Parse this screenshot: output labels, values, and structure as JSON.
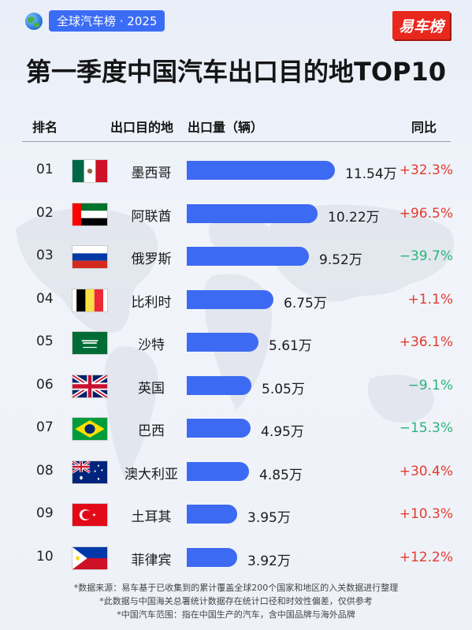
{
  "tag": "全球汽车榜 · 2025",
  "logo": "易车榜",
  "title": "第一季度中国汽车出口目的地TOP10",
  "headers": {
    "rank": "排名",
    "country": "出口目的地",
    "volume": "出口量（辆）",
    "yoy": "同比"
  },
  "colors": {
    "bar": "#3d6af2",
    "positive": "#e33b2f",
    "negative": "#27b57a",
    "tag": "#3b6cf6",
    "logo": "#e8271d"
  },
  "chart_data": {
    "type": "bar",
    "orientation": "horizontal",
    "unit": "万",
    "categories": [
      "墨西哥",
      "阿联酋",
      "俄罗斯",
      "比利时",
      "沙特",
      "英国",
      "巴西",
      "澳大利亚",
      "土耳其",
      "菲律宾"
    ],
    "values": [
      11.54,
      10.22,
      9.52,
      6.75,
      5.61,
      5.05,
      4.95,
      4.85,
      3.95,
      3.92
    ],
    "rows": [
      {
        "rank": "01",
        "country": "墨西哥",
        "flag": "mexico-flag-icon",
        "value": 11.54,
        "value_label": "11.54万",
        "yoy": "+32.3%",
        "trend": "up"
      },
      {
        "rank": "02",
        "country": "阿联酋",
        "flag": "uae-flag-icon",
        "value": 10.22,
        "value_label": "10.22万",
        "yoy": "+96.5%",
        "trend": "up"
      },
      {
        "rank": "03",
        "country": "俄罗斯",
        "flag": "russia-flag-icon",
        "value": 9.52,
        "value_label": "9.52万",
        "yoy": "−39.7%",
        "trend": "down"
      },
      {
        "rank": "04",
        "country": "比利时",
        "flag": "belgium-flag-icon",
        "value": 6.75,
        "value_label": "6.75万",
        "yoy": "+1.1%",
        "trend": "up"
      },
      {
        "rank": "05",
        "country": "沙特",
        "flag": "saudi-flag-icon",
        "value": 5.61,
        "value_label": "5.61万",
        "yoy": "+36.1%",
        "trend": "up"
      },
      {
        "rank": "06",
        "country": "英国",
        "flag": "uk-flag-icon",
        "value": 5.05,
        "value_label": "5.05万",
        "yoy": "−9.1%",
        "trend": "down"
      },
      {
        "rank": "07",
        "country": "巴西",
        "flag": "brazil-flag-icon",
        "value": 4.95,
        "value_label": "4.95万",
        "yoy": "−15.3%",
        "trend": "down"
      },
      {
        "rank": "08",
        "country": "澳大利亚",
        "flag": "australia-flag-icon",
        "value": 4.85,
        "value_label": "4.85万",
        "yoy": "+30.4%",
        "trend": "up"
      },
      {
        "rank": "09",
        "country": "土耳其",
        "flag": "turkey-flag-icon",
        "value": 3.95,
        "value_label": "3.95万",
        "yoy": "+10.3%",
        "trend": "up"
      },
      {
        "rank": "10",
        "country": "菲律宾",
        "flag": "philippines-flag-icon",
        "value": 3.92,
        "value_label": "3.92万",
        "yoy": "+12.2%",
        "trend": "up"
      }
    ]
  },
  "footnotes": [
    "*数据来源：易车基于已收集到的累计覆盖全球200个国家和地区的入关数据进行整理",
    "*此数据与中国海关总署统计数据存在统计口径和时效性偏差，仅供参考",
    "*中国汽车范围：指在中国生产的汽车，含中国品牌与海外品牌"
  ]
}
